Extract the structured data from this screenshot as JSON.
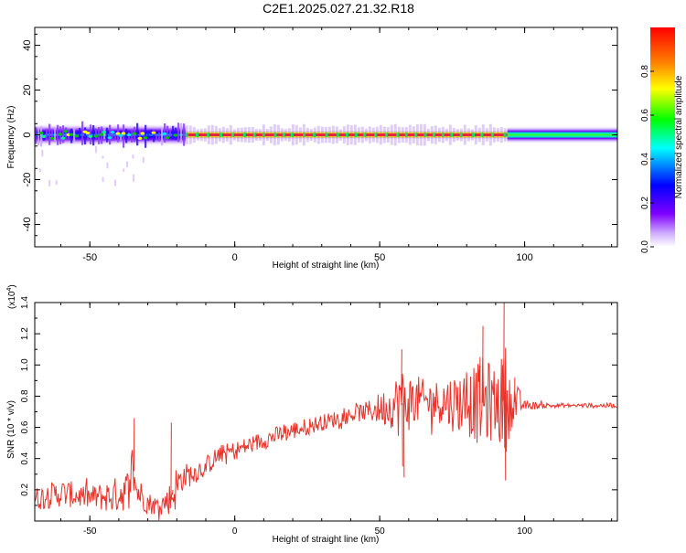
{
  "title": "C2E1.2025.027.21.32.R18",
  "colors": {
    "series": "#e8322a",
    "frame": "#000000"
  },
  "chart_data": [
    {
      "type": "heatmap",
      "title": "",
      "xlabel": "Height of straight line (km)",
      "ylabel": "Frequency (Hz)",
      "xlim": [
        -69,
        132
      ],
      "ylim": [
        -50,
        48
      ],
      "xticks": [
        -50,
        0,
        50,
        100
      ],
      "yticks": [
        -40,
        -20,
        0,
        20,
        40
      ],
      "colorbar": {
        "label": "Normalized spectral amplitude",
        "range": [
          0,
          1
        ],
        "ticks": [
          0.0,
          0.2,
          0.4,
          0.6,
          0.8
        ],
        "tick_labels": [
          "0.0",
          "0.2",
          "0.4",
          "0.6",
          "0.8"
        ],
        "colormap": [
          "#ffffff",
          "#8000ff",
          "#0000ff",
          "#00ffff",
          "#00ff00",
          "#ffff00",
          "#ff8000",
          "#ff0000"
        ]
      },
      "band": {
        "center_freq": 0,
        "segments": [
          {
            "x_range": [
              -69,
              -17
            ],
            "half_width_hz": 5,
            "peak_amplitude": 0.55,
            "texture": "speckled"
          },
          {
            "x_range": [
              -17,
              94
            ],
            "half_width_hz": 2,
            "peak_amplitude": 1.0,
            "texture": "red core with dashes"
          },
          {
            "x_range": [
              94,
              132
            ],
            "half_width_hz": 4,
            "peak_amplitude": 0.5,
            "texture": "smooth"
          }
        ]
      }
    },
    {
      "type": "line",
      "title": "",
      "xlabel": "Height of straight line (km)",
      "ylabel": "SNR (10 * v/v)",
      "multiplier_label": "(x10",
      "multiplier_exp": "4",
      "xlim": [
        -69,
        132
      ],
      "ylim": [
        0,
        1.4
      ],
      "xticks": [
        -50,
        0,
        50,
        100
      ],
      "yticks": [
        0.2,
        0.4,
        0.6,
        0.8,
        1.0,
        1.2,
        1.4
      ],
      "ytick_labels": [
        "0.2",
        "0.4",
        "0.6",
        "0.8",
        "1.0",
        "1.2",
        "1.4"
      ],
      "series": [
        {
          "envelope_x": [
            -69,
            -60,
            -50,
            -42,
            -37,
            -35,
            -34,
            -30,
            -28,
            -26,
            -24,
            -22,
            -20,
            -18,
            -15,
            -10,
            -5,
            0,
            10,
            20,
            30,
            40,
            45,
            50,
            55,
            57,
            58,
            60,
            62,
            65,
            70,
            75,
            80,
            84,
            86,
            90,
            92,
            93,
            95,
            97,
            100,
            110,
            120,
            132
          ],
          "envelope_mid": [
            0.14,
            0.18,
            0.15,
            0.16,
            0.2,
            0.35,
            0.2,
            0.12,
            0.1,
            0.1,
            0.12,
            0.15,
            0.22,
            0.28,
            0.3,
            0.35,
            0.43,
            0.45,
            0.52,
            0.58,
            0.63,
            0.68,
            0.7,
            0.72,
            0.74,
            0.78,
            0.75,
            0.76,
            0.78,
            0.76,
            0.77,
            0.76,
            0.76,
            0.75,
            0.76,
            0.76,
            0.76,
            0.78,
            0.76,
            0.76,
            0.74,
            0.74,
            0.74,
            0.74
          ],
          "envelope_amp": [
            0.1,
            0.12,
            0.1,
            0.15,
            0.18,
            0.28,
            0.15,
            0.1,
            0.08,
            0.1,
            0.1,
            0.15,
            0.2,
            0.12,
            0.1,
            0.09,
            0.08,
            0.08,
            0.08,
            0.08,
            0.07,
            0.07,
            0.08,
            0.14,
            0.2,
            0.35,
            0.3,
            0.25,
            0.22,
            0.2,
            0.18,
            0.25,
            0.28,
            0.35,
            0.4,
            0.3,
            0.4,
            0.55,
            0.25,
            0.18,
            0.04,
            0.02,
            0.02,
            0.02
          ]
        }
      ]
    }
  ]
}
